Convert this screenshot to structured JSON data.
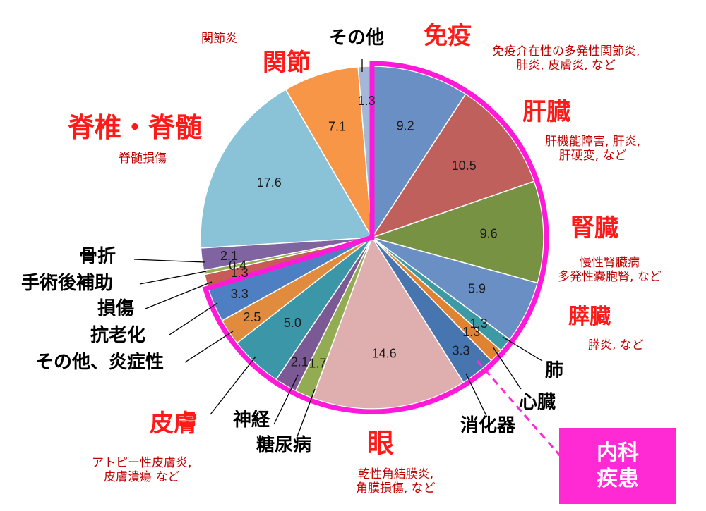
{
  "chart_data": {
    "type": "pie",
    "slices": [
      {
        "value": 9.2,
        "color": "#6a8fc5"
      },
      {
        "value": 10.5,
        "color": "#c0605c"
      },
      {
        "value": 9.6,
        "color": "#789244"
      },
      {
        "value": 5.9,
        "color": "#6a8fc5"
      },
      {
        "value": 1.3,
        "color": "#3d9aa5"
      },
      {
        "value": 1.3,
        "color": "#df8232"
      },
      {
        "value": 3.3,
        "color": "#4675b0"
      },
      {
        "value": 14.6,
        "color": "#dfaeae"
      },
      {
        "value": 1.7,
        "color": "#93ab52"
      },
      {
        "value": 2.1,
        "color": "#7a5995"
      },
      {
        "value": 5.0,
        "color": "#3b96a7"
      },
      {
        "value": 2.5,
        "color": "#e08b3e"
      },
      {
        "value": 3.3,
        "color": "#4f7fc3"
      },
      {
        "value": 1.3,
        "color": "#c75b55"
      },
      {
        "value": 0.4,
        "color": "#97b054"
      },
      {
        "value": 2.1,
        "color": "#8064a2"
      },
      {
        "value": 17.6,
        "color": "#8ac2d7"
      },
      {
        "value": 7.1,
        "color": "#f79646"
      },
      {
        "value": 1.3,
        "color": "#a5b7d8"
      }
    ],
    "value_labels": [
      "9.2",
      "10.5",
      "9.6",
      "5.9",
      "1.3",
      "1.3",
      "3.3",
      "14.6",
      "1.7",
      "2.1",
      "5.0",
      "2.5",
      "3.3",
      "1.3",
      "0.4",
      "2.1",
      "17.6",
      "7.1",
      "1.3"
    ],
    "highlight": {
      "color": "#ff1ad9",
      "from_slice": 0,
      "to_slice": 12
    }
  },
  "labels": {
    "immune": "免疫",
    "immune_sub1": "免疫介在性の多発性関節炎,",
    "immune_sub2": "肺炎, 皮膚炎, など",
    "liver": "肝臓",
    "liver_sub1": "肝機能障害, 肝炎,",
    "liver_sub2": "肝硬変, など",
    "kidney": "腎臓",
    "kidney_sub1": "慢性腎臓病",
    "kidney_sub2": "多発性嚢胞腎, など",
    "pancreas": "膵臓",
    "pancreas_sub": "膵炎, など",
    "lung": "肺",
    "heart": "心臓",
    "digestive": "消化器",
    "eye": "眼",
    "eye_sub1": "乾性角結膜炎,",
    "eye_sub2": "角膜損傷, など",
    "diabetes": "糖尿病",
    "nerve": "神経",
    "skin": "皮膚",
    "skin_sub1": "アトピー性皮膚炎,",
    "skin_sub2": "皮膚潰瘍 など",
    "other_inflam": "その他、炎症性",
    "anti_aging": "抗老化",
    "injury": "損傷",
    "post_surgery": "手術後補助",
    "fracture": "骨折",
    "spine": "脊椎・脊髄",
    "spine_sub": "脊髄損傷",
    "joint": "関節",
    "joint_sub": "関節炎",
    "other": "その他"
  },
  "internal_box": {
    "line1": "内科",
    "line2": "疾患"
  }
}
